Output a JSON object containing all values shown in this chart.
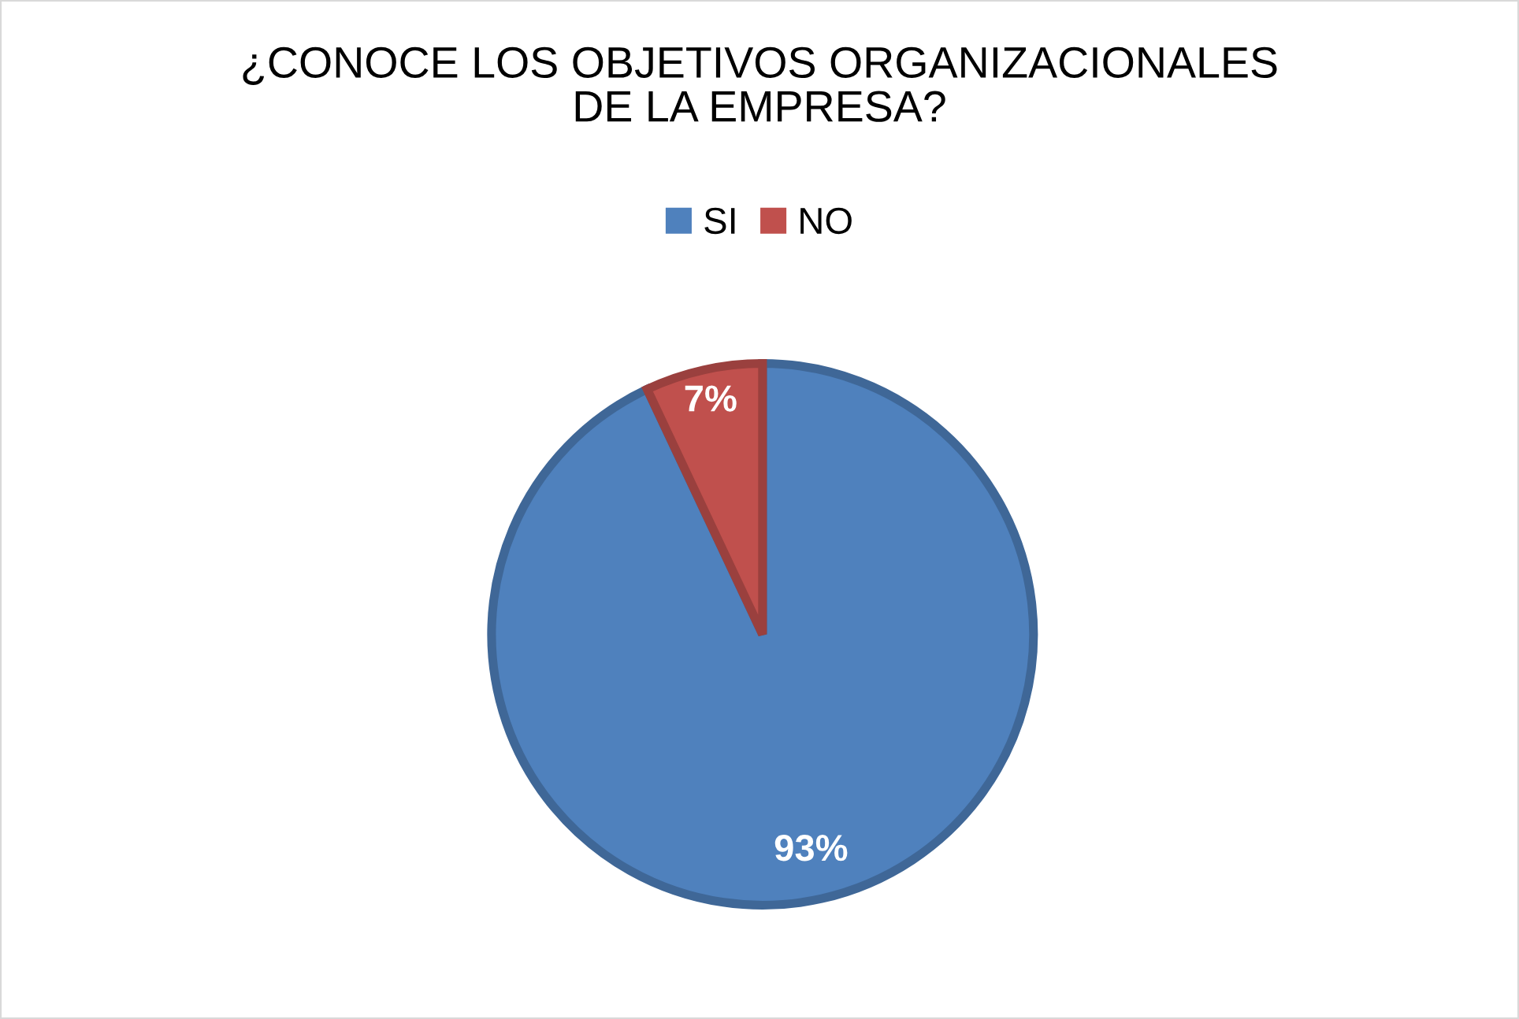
{
  "chart_data": {
    "type": "pie",
    "title": "¿CONOCE LOS OBJETIVOS ORGANIZACIONALES\nDE LA EMPRESA?",
    "categories": [
      "SI",
      "NO"
    ],
    "values": [
      93,
      7
    ],
    "colors": [
      "#4f81bd",
      "#c0504d"
    ],
    "value_labels": [
      "93%",
      "7%"
    ],
    "legend": "top"
  }
}
